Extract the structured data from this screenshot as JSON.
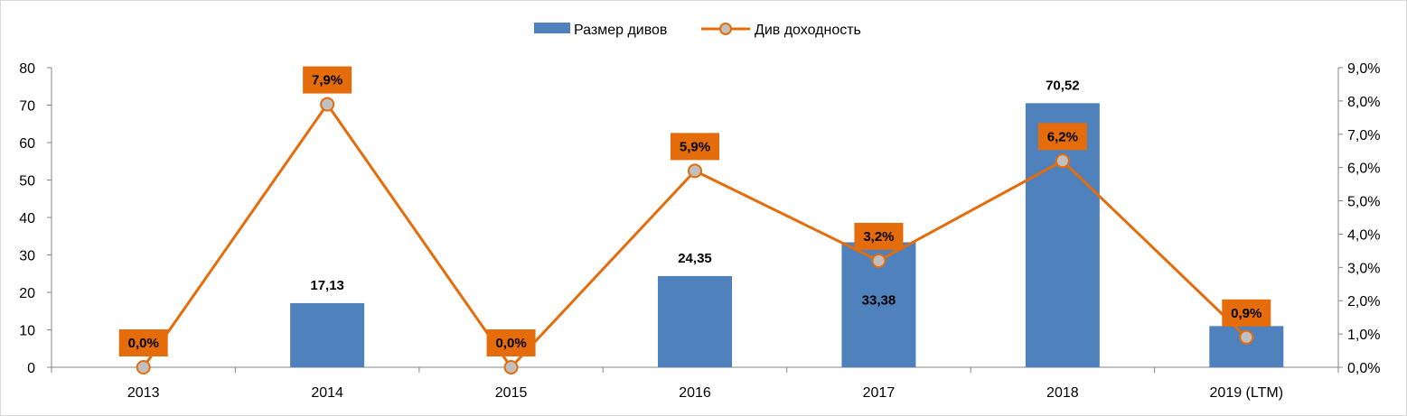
{
  "chart_data": {
    "type": "bar",
    "categories": [
      "2013",
      "2014",
      "2015",
      "2016",
      "2017",
      "2018",
      "2019 (LTM)"
    ],
    "series": [
      {
        "name": "Размер дивов",
        "type": "bar",
        "axis": "left",
        "color": "#4F81BD",
        "values": [
          0,
          17.13,
          0,
          24.35,
          33.38,
          70.52,
          11
        ],
        "labels": [
          "",
          "17,13",
          "",
          "24,35",
          "33,38",
          "70,52",
          ""
        ]
      },
      {
        "name": "Див доходность",
        "type": "line",
        "axis": "right",
        "color": "#E46C0A",
        "marker_color": "#C0C0C0",
        "values": [
          0.0,
          7.9,
          0.0,
          5.9,
          3.2,
          6.2,
          0.9
        ],
        "labels": [
          "0,0%",
          "7,9%",
          "0,0%",
          "5,9%",
          "3,2%",
          "6,2%",
          "0,9%"
        ]
      }
    ],
    "y_left": {
      "range": [
        0,
        80
      ],
      "ticks": [
        0,
        10,
        20,
        30,
        40,
        50,
        60,
        70,
        80
      ],
      "tick_labels": [
        "0",
        "10",
        "20",
        "30",
        "40",
        "50",
        "60",
        "70",
        "80"
      ]
    },
    "y_right": {
      "range": [
        0,
        9
      ],
      "ticks": [
        0,
        1,
        2,
        3,
        4,
        5,
        6,
        7,
        8,
        9
      ],
      "tick_labels": [
        "0,0%",
        "1,0%",
        "2,0%",
        "3,0%",
        "4,0%",
        "5,0%",
        "6,0%",
        "7,0%",
        "8,0%",
        "9,0%"
      ]
    },
    "grid": false,
    "legend": "top-center"
  }
}
